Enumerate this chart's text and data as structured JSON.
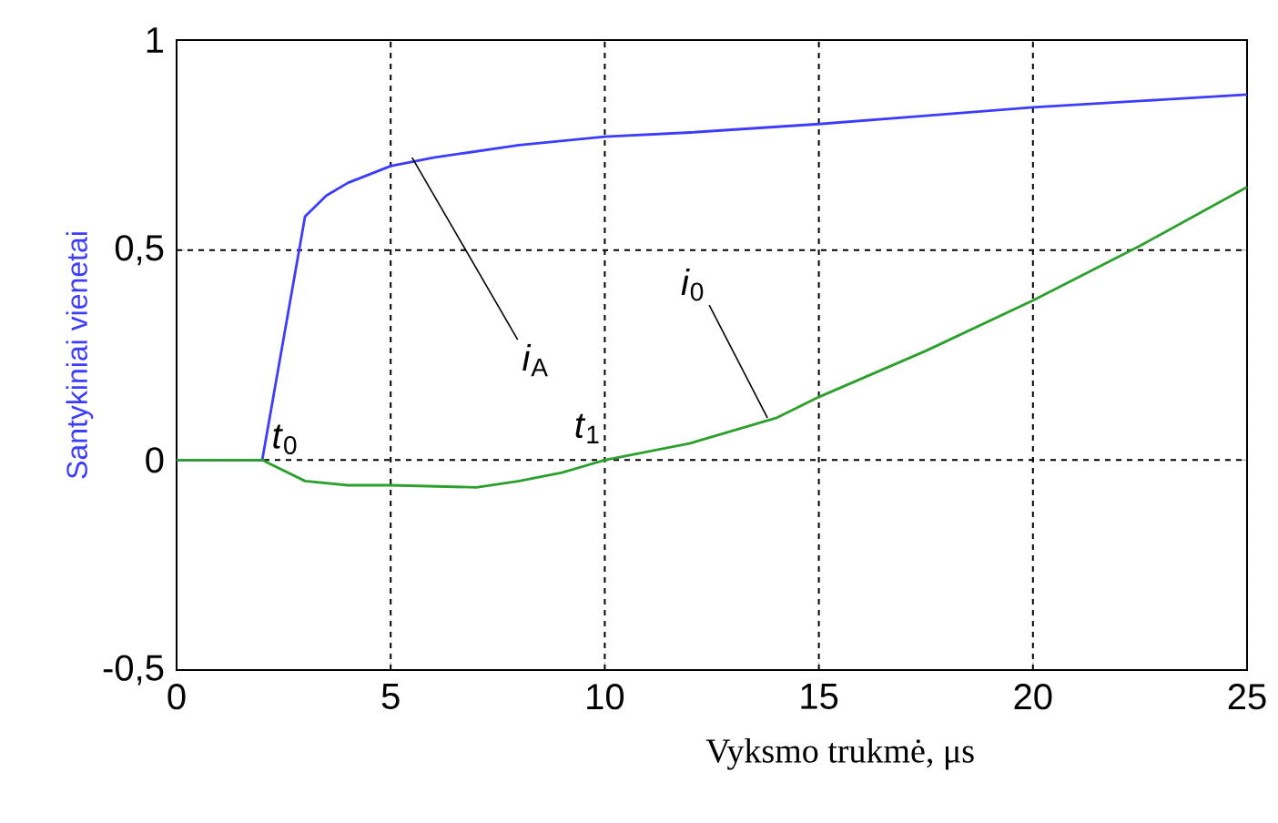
{
  "chart_data": {
    "type": "line",
    "xlabel": "Vyksmo trukmė, μs",
    "ylabel": "Santykiniai vienetai",
    "xlim": [
      0,
      25
    ],
    "xticks": [
      0,
      5,
      10,
      15,
      20,
      25
    ],
    "ylim": [
      -0.5,
      1
    ],
    "yticks": [
      {
        "value": -0.5,
        "label": "-0,5"
      },
      0,
      {
        "value": 0.5,
        "label": "0,5"
      },
      1
    ],
    "grid": true,
    "marker": "none",
    "line_style": "solid",
    "series": [
      {
        "color": "#3c3cff",
        "x": [
          0,
          2,
          3,
          3.5,
          4,
          5,
          6,
          8,
          10,
          12,
          15,
          17.5,
          20,
          22.5,
          25
        ],
        "values": [
          0,
          0,
          0.58,
          0.63,
          0.66,
          0.7,
          0.72,
          0.75,
          0.77,
          0.78,
          0.8,
          0.82,
          0.84,
          0.855,
          0.87
        ]
      },
      {
        "color": "#2ca02c",
        "x": [
          0,
          2,
          3,
          4,
          5,
          7,
          8,
          9,
          10,
          11,
          12,
          13,
          14,
          15,
          17.5,
          20,
          22.5,
          25
        ],
        "values": [
          0,
          0,
          -0.05,
          -0.06,
          -0.06,
          -0.065,
          -0.05,
          -0.03,
          0,
          0.02,
          0.04,
          0.07,
          0.1,
          0.15,
          0.26,
          0.38,
          0.51,
          0.65
        ]
      }
    ],
    "annotations": [
      {
        "text": "*t*$_{0}$",
        "x": 2,
        "y": 0
      },
      {
        "text": "*t*$_{1}$",
        "x": 10,
        "y": 0
      },
      {
        "text": "*i*$_{A}$",
        "x": 5.5,
        "y": 0.72
      },
      {
        "text": "*i*$_{0}$",
        "x": 13.8,
        "y": 0.1
      }
    ]
  }
}
